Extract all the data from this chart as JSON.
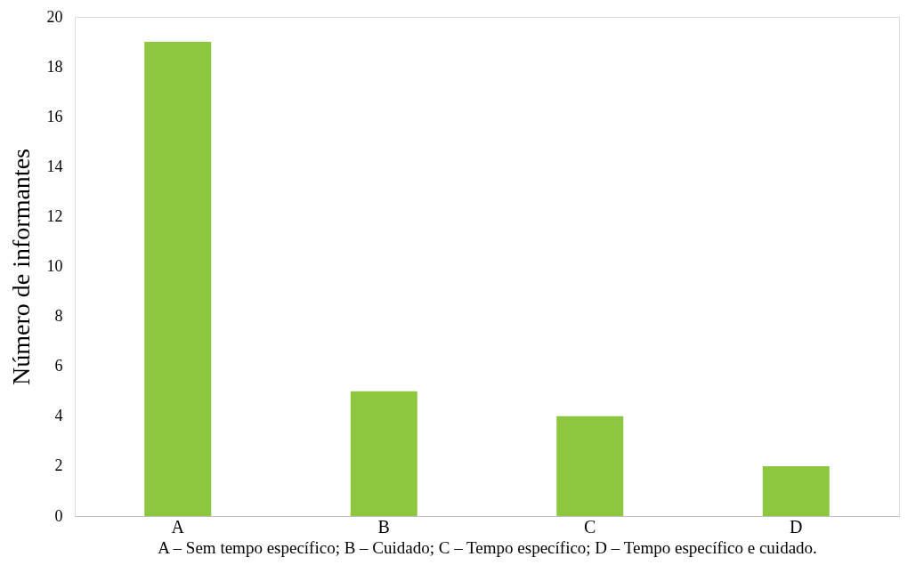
{
  "chart_data": {
    "type": "bar",
    "ylabel": "Número de informantes",
    "xlabel": "A – Sem tempo específico; B – Cuidado; C – Tempo específico; D – Tempo específico e cuidado.",
    "categories": [
      "A",
      "B",
      "C",
      "D"
    ],
    "values": [
      19,
      5,
      4,
      2
    ],
    "color": "#8dc63f",
    "ylim": [
      0,
      20
    ],
    "yticks": [
      0,
      2,
      4,
      6,
      8,
      10,
      12,
      14,
      16,
      18,
      20
    ],
    "grid": false
  }
}
